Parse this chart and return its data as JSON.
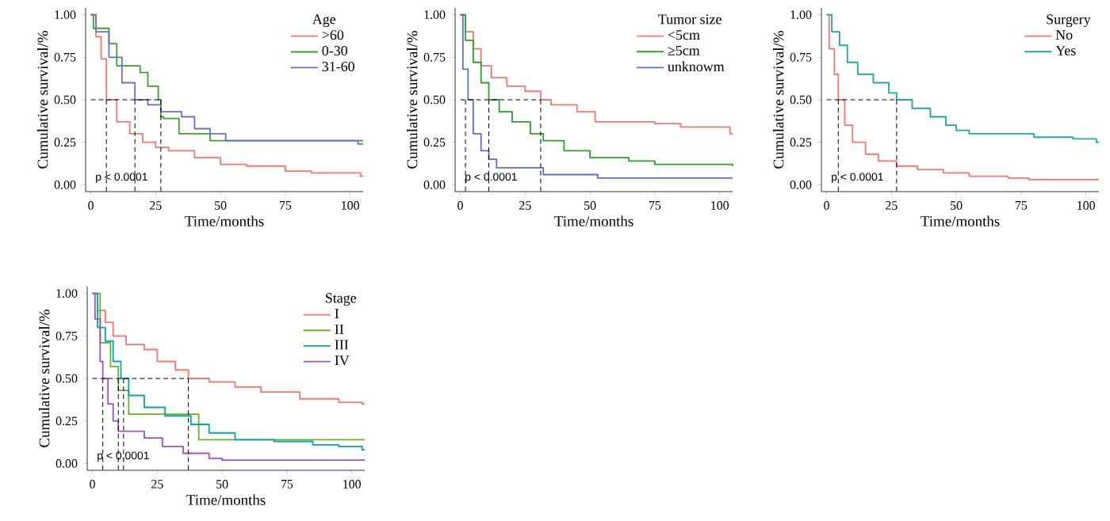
{
  "chart_data": [
    {
      "type": "step",
      "xlabel": "Time/months",
      "ylabel": "Cumulative survival/%",
      "legend_title": "Age",
      "legend": "top right",
      "xlim": [
        -2,
        105
      ],
      "ylim": [
        -0.04,
        1.04
      ],
      "xticks": [
        0,
        25,
        50,
        75,
        100
      ],
      "yticks": [
        {
          "value": 0,
          "label": "0.00"
        },
        {
          "value": 0.25,
          "label": "0.25"
        },
        {
          "value": 0.5,
          "label": "0.50"
        },
        {
          "value": 0.75,
          "label": "0.75"
        },
        {
          "value": 1,
          "label": "1.00"
        }
      ],
      "annotations": [
        "p < 0.0001"
      ],
      "ref_lines": [
        {
          "axis": "y",
          "value": 0.5
        },
        {
          "axis": "x",
          "value": 6
        },
        {
          "axis": "x",
          "value": 17
        },
        {
          "axis": "x",
          "value": 27
        }
      ],
      "series": [
        {
          "name": ">60",
          "color": "#f8766d",
          "x": [
            0,
            2,
            4,
            6,
            10,
            15,
            20,
            25,
            30,
            40,
            50,
            60,
            75,
            85,
            104,
            105
          ],
          "values": [
            1,
            0.87,
            0.74,
            0.5,
            0.37,
            0.3,
            0.25,
            0.22,
            0.2,
            0.16,
            0.12,
            0.11,
            0.08,
            0.07,
            0.05,
            0.05
          ]
        },
        {
          "name": "0-30",
          "color": "#3ca02c",
          "x": [
            0,
            1,
            7,
            10,
            19,
            22,
            26,
            27,
            28,
            34,
            46,
            105
          ],
          "values": [
            1,
            0.92,
            0.83,
            0.7,
            0.66,
            0.58,
            0.5,
            0.4,
            0.39,
            0.3,
            0.26,
            0.26
          ]
        },
        {
          "name": "31-60",
          "color": "#6a6fc8",
          "x": [
            0,
            2,
            7,
            12,
            17,
            22,
            27,
            35,
            40,
            46,
            52,
            103,
            105
          ],
          "values": [
            1,
            0.9,
            0.75,
            0.6,
            0.5,
            0.47,
            0.43,
            0.4,
            0.33,
            0.3,
            0.26,
            0.24,
            0.24
          ]
        }
      ]
    },
    {
      "type": "step",
      "xlabel": "Time/months",
      "ylabel": "Cumulative survival/%",
      "legend_title": "Tumor size",
      "legend": "top right",
      "xlim": [
        -2,
        105
      ],
      "ylim": [
        -0.04,
        1.04
      ],
      "xticks": [
        0,
        25,
        50,
        75,
        100
      ],
      "yticks": [
        {
          "value": 0,
          "label": "0.00"
        },
        {
          "value": 0.25,
          "label": "0.25"
        },
        {
          "value": 0.5,
          "label": "0.50"
        },
        {
          "value": 0.75,
          "label": "0.75"
        },
        {
          "value": 1,
          "label": "1.00"
        }
      ],
      "annotations": [
        "p < 0.0001"
      ],
      "ref_lines": [
        {
          "axis": "y",
          "value": 0.5
        },
        {
          "axis": "x",
          "value": 2
        },
        {
          "axis": "x",
          "value": 11
        },
        {
          "axis": "x",
          "value": 31
        }
      ],
      "series": [
        {
          "name": "<5cm",
          "color": "#f8766d",
          "x": [
            0,
            2,
            5,
            8,
            12,
            18,
            25,
            31,
            35,
            45,
            52,
            75,
            85,
            104,
            105
          ],
          "values": [
            1,
            0.9,
            0.8,
            0.7,
            0.63,
            0.58,
            0.55,
            0.5,
            0.47,
            0.43,
            0.37,
            0.36,
            0.34,
            0.3,
            0.3
          ]
        },
        {
          "name": "≥5cm",
          "color": "#2ca02c",
          "x": [
            0,
            2,
            5,
            8,
            11,
            15,
            20,
            27,
            32,
            40,
            50,
            65,
            75,
            105
          ],
          "values": [
            1,
            0.85,
            0.72,
            0.6,
            0.5,
            0.43,
            0.37,
            0.3,
            0.26,
            0.2,
            0.16,
            0.14,
            0.12,
            0.11
          ]
        },
        {
          "name": "unknowm",
          "color": "#5a6fd0",
          "x": [
            0,
            1,
            3,
            5,
            8,
            11,
            14,
            32,
            53,
            105
          ],
          "values": [
            1,
            0.68,
            0.5,
            0.3,
            0.2,
            0.15,
            0.1,
            0.06,
            0.04,
            0.04
          ]
        }
      ]
    },
    {
      "type": "step",
      "xlabel": "Time/months",
      "ylabel": "Cumulative survival/%",
      "legend_title": "Surgery",
      "legend": "top right",
      "xlim": [
        -2,
        105
      ],
      "ylim": [
        -0.04,
        1.04
      ],
      "xticks": [
        0,
        25,
        50,
        75,
        100
      ],
      "yticks": [
        {
          "value": 0,
          "label": "0.00"
        },
        {
          "value": 0.25,
          "label": "0.25"
        },
        {
          "value": 0.5,
          "label": "0.50"
        },
        {
          "value": 0.75,
          "label": "0.75"
        },
        {
          "value": 1,
          "label": "1.00"
        }
      ],
      "annotations": [
        "p < 0.0001"
      ],
      "ref_lines": [
        {
          "axis": "y",
          "value": 0.5
        },
        {
          "axis": "x",
          "value": 4.5
        },
        {
          "axis": "x",
          "value": 27
        }
      ],
      "series": [
        {
          "name": "No",
          "color": "#f8766d",
          "x": [
            0,
            1,
            3,
            4.5,
            7,
            10,
            15,
            20,
            27,
            35,
            45,
            55,
            70,
            78,
            105
          ],
          "values": [
            1,
            0.8,
            0.65,
            0.5,
            0.35,
            0.25,
            0.18,
            0.14,
            0.11,
            0.09,
            0.07,
            0.05,
            0.04,
            0.03,
            0.03
          ]
        },
        {
          "name": "Yes",
          "color": "#1fa89e",
          "x": [
            0,
            2,
            5,
            8,
            12,
            18,
            24,
            27,
            33,
            40,
            46,
            50,
            55,
            80,
            95,
            104,
            105
          ],
          "values": [
            1,
            0.9,
            0.82,
            0.72,
            0.65,
            0.6,
            0.54,
            0.5,
            0.45,
            0.4,
            0.35,
            0.32,
            0.3,
            0.28,
            0.27,
            0.25,
            0.25
          ]
        }
      ]
    },
    {
      "type": "step",
      "xlabel": "Time/months",
      "ylabel": "Cumulative survival/%",
      "legend_title": "Stage",
      "legend": "top right",
      "xlim": [
        -2,
        105
      ],
      "ylim": [
        -0.04,
        1.04
      ],
      "xticks": [
        0,
        25,
        50,
        75,
        100
      ],
      "yticks": [
        {
          "value": 0,
          "label": "0.00"
        },
        {
          "value": 0.25,
          "label": "0.25"
        },
        {
          "value": 0.5,
          "label": "0.50"
        },
        {
          "value": 0.75,
          "label": "0.75"
        },
        {
          "value": 1,
          "label": "1.00"
        }
      ],
      "annotations": [
        "p < 0.0001"
      ],
      "ref_lines": [
        {
          "axis": "y",
          "value": 0.5
        },
        {
          "axis": "x",
          "value": 4
        },
        {
          "axis": "x",
          "value": 10
        },
        {
          "axis": "x",
          "value": 12
        },
        {
          "axis": "x",
          "value": 37
        }
      ],
      "series": [
        {
          "name": "I",
          "color": "#f8766d",
          "x": [
            0,
            2,
            5,
            8,
            13,
            20,
            25,
            32,
            37,
            45,
            55,
            65,
            80,
            95,
            104,
            105
          ],
          "values": [
            1,
            0.9,
            0.83,
            0.75,
            0.7,
            0.67,
            0.6,
            0.55,
            0.5,
            0.48,
            0.45,
            0.42,
            0.38,
            0.36,
            0.35,
            0.35
          ]
        },
        {
          "name": "II",
          "color": "#6aaf2a",
          "x": [
            0,
            3,
            7,
            10,
            14,
            41,
            105
          ],
          "values": [
            1,
            0.71,
            0.57,
            0.43,
            0.29,
            0.14,
            0.14
          ]
        },
        {
          "name": "III",
          "color": "#00a9a5",
          "x": [
            0,
            2,
            5,
            8,
            11,
            14,
            20,
            28,
            38,
            45,
            55,
            70,
            85,
            95,
            104,
            105
          ],
          "values": [
            1,
            0.8,
            0.72,
            0.6,
            0.5,
            0.4,
            0.33,
            0.28,
            0.23,
            0.18,
            0.14,
            0.13,
            0.11,
            0.1,
            0.08,
            0.08
          ]
        },
        {
          "name": "IV",
          "color": "#a050c8",
          "x": [
            0,
            1,
            3,
            4,
            6,
            8,
            10,
            20,
            27,
            35,
            45,
            50,
            105
          ],
          "values": [
            1,
            0.85,
            0.6,
            0.5,
            0.35,
            0.25,
            0.19,
            0.15,
            0.1,
            0.06,
            0.03,
            0.02,
            0.02
          ]
        }
      ]
    }
  ]
}
